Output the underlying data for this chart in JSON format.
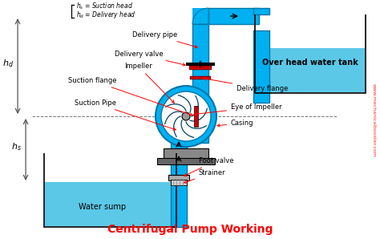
{
  "bg_color": "#ffffff",
  "cyan": "#00b0f0",
  "pipe_edge": "#0077aa",
  "red": "#ff0000",
  "dark_red": "#cc0000",
  "black": "#000000",
  "gray": "#666666",
  "water_fill": "#5bc8e8",
  "title": "Centrifugal Pump Working",
  "title_color": "#ff0000",
  "title_fontsize": 10,
  "watermark": "www.mechanicalbooster.com",
  "labels": {
    "delivery_pipe": "Delivery pipe",
    "delivery_valve": "Delivery valve",
    "impeller": "Impeller",
    "suction_flange": "Suction flange",
    "delivery_flange": "Delivery flange",
    "eye_of_impeller": "Eye of Impeller",
    "casing": "Casing",
    "suction_pipe": "Suction Pipe",
    "foot_valve": "Foot valve",
    "strainer": "Strainer",
    "water_sump": "Water sump",
    "overhead_tank": "Over head water tank"
  }
}
